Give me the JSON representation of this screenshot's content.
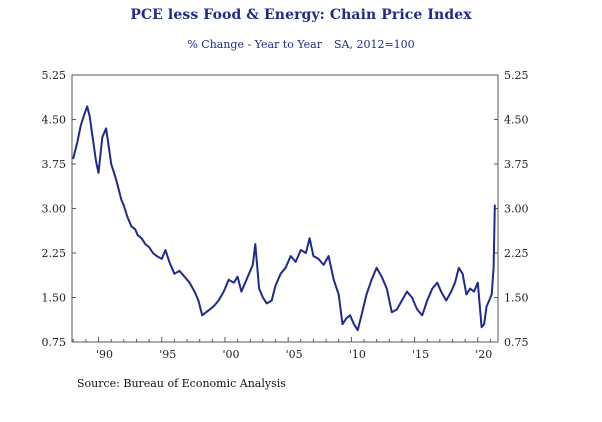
{
  "chart_data": {
    "type": "line",
    "title": "PCE less Food & Energy: Chain Price Index",
    "subtitle_left": "% Change - Year to Year",
    "subtitle_right": "SA, 2012=100",
    "source": "Source:  Bureau of Economic Analysis",
    "xlabel": "",
    "ylabel": "",
    "xlim": [
      1987.9,
      2021.6
    ],
    "ylim": [
      0.75,
      5.25
    ],
    "y_ticks": [
      0.75,
      1.5,
      2.25,
      3.0,
      3.75,
      4.5,
      5.25
    ],
    "y_tick_labels": [
      "0.75",
      "1.50",
      "2.25",
      "3.00",
      "3.75",
      "4.50",
      "5.25"
    ],
    "x_ticks": [
      1990,
      1995,
      2000,
      2005,
      2010,
      2015,
      2020
    ],
    "x_tick_labels": [
      "'90",
      "'95",
      "'00",
      "'05",
      "'10",
      "'15",
      "'20"
    ],
    "line_color": "#1f2a8c",
    "series": [
      {
        "name": "PCE less Food & Energy, % change Y/Y",
        "x": [
          1988.0,
          1988.3,
          1988.6,
          1988.9,
          1989.1,
          1989.3,
          1989.5,
          1989.8,
          1990.0,
          1990.3,
          1990.6,
          1990.8,
          1991.0,
          1991.3,
          1991.5,
          1991.8,
          1992.0,
          1992.3,
          1992.6,
          1992.9,
          1993.1,
          1993.4,
          1993.7,
          1994.0,
          1994.3,
          1994.6,
          1995.0,
          1995.3,
          1995.6,
          1996.0,
          1996.4,
          1996.8,
          1997.2,
          1997.6,
          1997.9,
          1998.2,
          1998.5,
          1998.8,
          1999.1,
          1999.5,
          1999.9,
          2000.3,
          2000.7,
          2001.0,
          2001.3,
          2001.6,
          2001.9,
          2002.2,
          2002.4,
          2002.7,
          2003.0,
          2003.3,
          2003.7,
          2004.0,
          2004.4,
          2004.8,
          2005.2,
          2005.6,
          2006.0,
          2006.4,
          2006.7,
          2007.0,
          2007.4,
          2007.8,
          2008.2,
          2008.6,
          2009.0,
          2009.3,
          2009.6,
          2009.9,
          2010.2,
          2010.5,
          2010.8,
          2011.2,
          2011.6,
          2012.0,
          2012.4,
          2012.8,
          2013.2,
          2013.6,
          2014.0,
          2014.4,
          2014.8,
          2015.2,
          2015.6,
          2016.0,
          2016.4,
          2016.8,
          2017.1,
          2017.5,
          2017.9,
          2018.2,
          2018.5,
          2018.8,
          2019.1,
          2019.4,
          2019.7,
          2020.0,
          2020.3,
          2020.5,
          2020.7,
          2020.9,
          2021.1,
          2021.25,
          2021.35
        ],
        "values": [
          3.85,
          4.1,
          4.4,
          4.6,
          4.72,
          4.55,
          4.25,
          3.8,
          3.6,
          4.2,
          4.35,
          4.05,
          3.75,
          3.55,
          3.4,
          3.15,
          3.05,
          2.85,
          2.7,
          2.65,
          2.55,
          2.5,
          2.4,
          2.35,
          2.25,
          2.2,
          2.15,
          2.3,
          2.1,
          1.9,
          1.95,
          1.85,
          1.75,
          1.6,
          1.45,
          1.2,
          1.25,
          1.3,
          1.35,
          1.45,
          1.6,
          1.8,
          1.75,
          1.85,
          1.6,
          1.75,
          1.9,
          2.05,
          2.4,
          1.65,
          1.5,
          1.4,
          1.45,
          1.7,
          1.9,
          2.0,
          2.2,
          2.1,
          2.3,
          2.25,
          2.5,
          2.2,
          2.15,
          2.05,
          2.2,
          1.8,
          1.55,
          1.05,
          1.15,
          1.2,
          1.05,
          0.95,
          1.2,
          1.55,
          1.8,
          2.0,
          1.85,
          1.65,
          1.25,
          1.3,
          1.45,
          1.6,
          1.5,
          1.3,
          1.2,
          1.45,
          1.65,
          1.75,
          1.6,
          1.45,
          1.6,
          1.75,
          2.0,
          1.9,
          1.55,
          1.65,
          1.6,
          1.75,
          1.0,
          1.05,
          1.35,
          1.45,
          1.55,
          2.0,
          3.05
        ]
      }
    ]
  }
}
